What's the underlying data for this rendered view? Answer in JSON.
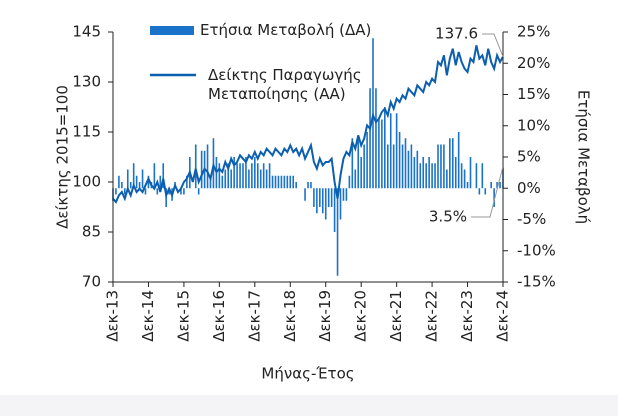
{
  "chart_data": {
    "type": "bar-line",
    "y_label": "Δείκτης 2015=100",
    "y2_label": "Ετήσια Μεταβολή",
    "x_label": "Μήνας-Έτος",
    "categories": [
      "Δεκ-13",
      null,
      null,
      null,
      null,
      null,
      null,
      null,
      null,
      null,
      null,
      null,
      "Δεκ-14",
      null,
      null,
      null,
      null,
      null,
      null,
      null,
      null,
      null,
      null,
      null,
      "Δεκ-15",
      null,
      null,
      null,
      null,
      null,
      null,
      null,
      null,
      null,
      null,
      null,
      "Δεκ-16",
      null,
      null,
      null,
      null,
      null,
      null,
      null,
      null,
      null,
      null,
      null,
      "Δεκ-17",
      null,
      null,
      null,
      null,
      null,
      null,
      null,
      null,
      null,
      null,
      null,
      "Δεκ-18",
      null,
      null,
      null,
      null,
      null,
      null,
      null,
      null,
      null,
      null,
      null,
      "Δεκ-19",
      null,
      null,
      null,
      null,
      null,
      null,
      null,
      null,
      null,
      null,
      null,
      "Δεκ-20",
      null,
      null,
      null,
      null,
      null,
      null,
      null,
      null,
      null,
      null,
      null,
      "Δεκ-21",
      null,
      null,
      null,
      null,
      null,
      null,
      null,
      null,
      null,
      null,
      null,
      "Δεκ-22",
      null,
      null,
      null,
      null,
      null,
      null,
      null,
      null,
      null,
      null,
      null,
      "Δεκ-23",
      null,
      null,
      null,
      null,
      null,
      null,
      null,
      null,
      null,
      null,
      null,
      "Δεκ-24"
    ],
    "series": [
      {
        "name": "Ετήσια Μεταβολή (ΔΑ)",
        "type": "bar",
        "axis": "y2",
        "color": "#1a73c8",
        "values": [
          -2,
          -1,
          2,
          1,
          -1,
          3,
          1,
          4,
          2,
          1,
          3,
          -1,
          2,
          1,
          4,
          -1,
          2,
          4,
          -3,
          -1,
          -2,
          1,
          0,
          -1,
          -1,
          2,
          5,
          0,
          7,
          -1,
          6,
          6,
          7,
          2,
          8,
          5,
          4,
          2,
          3,
          4,
          3,
          5,
          4,
          4,
          4,
          5,
          3,
          4,
          5,
          4,
          3,
          4,
          3,
          4,
          2,
          2,
          2,
          2,
          2,
          2,
          2,
          2,
          1,
          0,
          0,
          -2,
          1,
          1,
          -3,
          -4,
          -3,
          -4,
          -5,
          -3,
          -3,
          -7,
          -14,
          -5,
          -2,
          -2,
          2,
          8,
          3,
          8,
          5,
          7,
          9,
          16,
          24,
          16,
          11,
          11,
          13,
          7,
          12,
          7,
          12,
          9,
          7,
          8,
          6,
          7,
          5,
          6,
          4,
          5,
          4,
          5,
          4,
          4,
          7,
          7,
          7,
          3,
          8,
          8,
          5,
          9,
          4,
          3,
          1,
          5,
          0,
          4,
          -1,
          4,
          -1,
          0,
          1,
          -3,
          1,
          1,
          3.5
        ]
      },
      {
        "name": "Δείκτης Παραγωγής Μεταποίησης (ΑΑ)",
        "type": "line",
        "axis": "y",
        "color": "#0c5fae",
        "values": [
          95,
          94,
          96,
          97,
          95,
          98,
          96,
          99,
          97,
          98,
          97,
          99,
          101,
          99,
          98,
          100,
          97,
          101,
          96,
          98,
          96,
          99,
          97,
          98,
          100,
          101,
          103,
          100,
          104,
          100,
          102,
          104,
          103,
          101,
          105,
          103,
          104,
          103,
          106,
          104,
          107,
          105,
          106,
          108,
          107,
          106,
          108,
          107,
          109,
          107,
          109,
          108,
          110,
          109,
          108,
          110,
          109,
          108,
          110,
          109,
          111,
          109,
          110,
          108,
          110,
          107,
          109,
          111,
          106,
          104,
          107,
          105,
          106,
          106,
          107,
          100,
          95,
          102,
          107,
          109,
          108,
          112,
          110,
          114,
          111,
          113,
          117,
          116,
          120,
          118,
          119,
          121,
          122,
          120,
          124,
          122,
          125,
          124,
          126,
          125,
          128,
          127,
          126,
          129,
          128,
          127,
          130,
          129,
          131,
          130,
          136,
          135,
          138,
          132,
          137,
          140,
          135,
          139,
          136,
          134,
          133,
          137,
          136,
          141,
          137,
          138,
          135,
          140,
          136,
          134,
          138,
          136,
          137.6
        ]
      }
    ],
    "ylim": [
      70,
      145
    ],
    "yticks": [
      70,
      85,
      100,
      115,
      130,
      145
    ],
    "y2lim": [
      -15,
      25
    ],
    "y2ticks": [
      {
        "value": -15,
        "label": "-15%"
      },
      {
        "value": -10,
        "label": "-10%"
      },
      {
        "value": -5,
        "label": "-5%"
      },
      {
        "value": 0,
        "label": "0%"
      },
      {
        "value": 5,
        "label": "5%"
      },
      {
        "value": 10,
        "label": "10%"
      },
      {
        "value": 15,
        "label": "15%"
      },
      {
        "value": 20,
        "label": "20%"
      },
      {
        "value": 25,
        "label": "25%"
      }
    ],
    "annotations": [
      {
        "text": "137.6"
      },
      {
        "text": "3.5%"
      }
    ]
  }
}
